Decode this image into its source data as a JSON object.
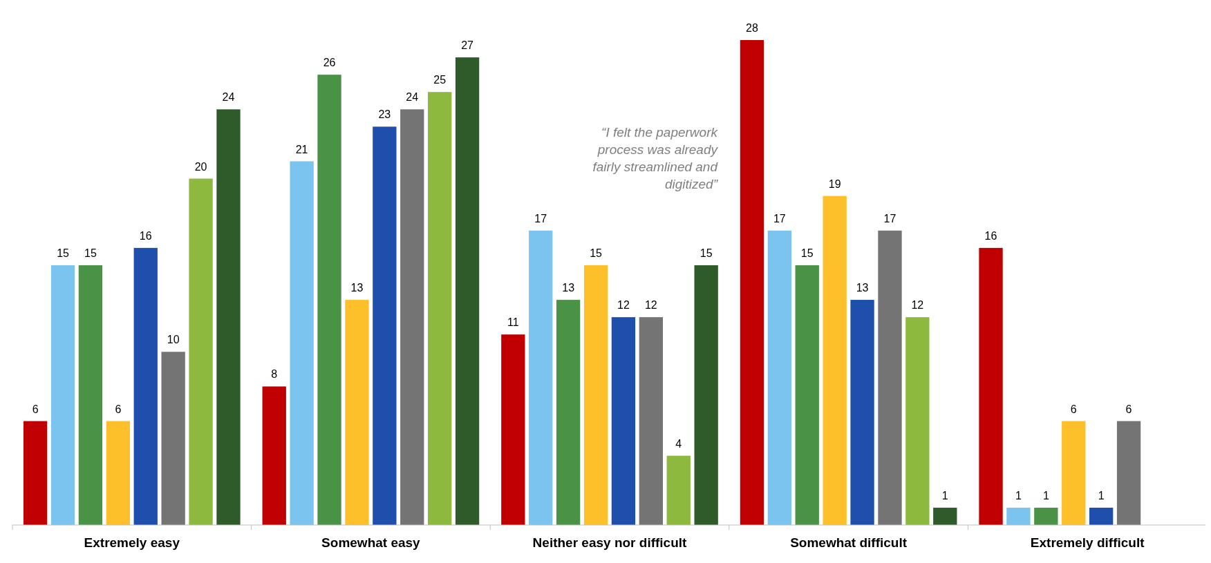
{
  "chart_data": {
    "type": "bar",
    "categories": [
      "Extremely easy",
      "Somewhat easy",
      "Neither easy nor difficult",
      "Somewhat difficult",
      "Extremely difficult"
    ],
    "series": [
      {
        "color": "#c00000",
        "values": [
          6,
          8,
          11,
          28,
          16
        ]
      },
      {
        "color": "#7ac4ef",
        "values": [
          15,
          21,
          17,
          17,
          1
        ]
      },
      {
        "color": "#4a9245",
        "values": [
          15,
          26,
          13,
          15,
          1
        ]
      },
      {
        "color": "#fec02a",
        "values": [
          6,
          13,
          15,
          19,
          6
        ]
      },
      {
        "color": "#1f4fad",
        "values": [
          16,
          23,
          12,
          13,
          1
        ]
      },
      {
        "color": "#747474",
        "values": [
          10,
          24,
          12,
          17,
          6
        ]
      },
      {
        "color": "#8db93f",
        "values": [
          20,
          25,
          4,
          12,
          null
        ]
      },
      {
        "color": "#2f5a2a",
        "values": [
          24,
          27,
          15,
          1,
          null
        ]
      }
    ],
    "data_labels": true,
    "annotations": [
      "“I felt the paperwork process was already fairly streamlined and digitized”"
    ]
  }
}
